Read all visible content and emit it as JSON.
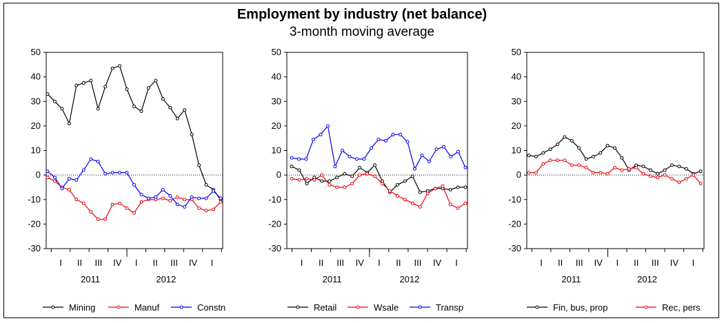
{
  "title": "Employment by industry (net balance)",
  "subtitle": "3-month moving average",
  "chart_data": [
    {
      "type": "line",
      "title": "Employment by industry (net balance)",
      "subtitle": "3-month moving average",
      "ylim": [
        -30,
        50
      ],
      "yticks": [
        -30,
        -20,
        -10,
        0,
        10,
        20,
        30,
        40,
        50
      ],
      "quarter_labels": [
        "I",
        "II",
        "III",
        "IV",
        "I",
        "II",
        "III",
        "IV",
        "I"
      ],
      "year_labels": [
        "2011",
        "2012"
      ],
      "legend_position": "bottom",
      "series": [
        {
          "name": "Mining",
          "color": "#000000",
          "values": [
            33,
            30,
            27,
            21,
            36.5,
            37.5,
            38.5,
            27,
            36,
            43.5,
            44.5,
            35,
            28,
            26,
            35.5,
            38.5,
            31,
            27.5,
            23,
            26.5,
            16.5,
            4,
            -4,
            -6,
            -10
          ]
        },
        {
          "name": "Manuf",
          "color": "#e8000b",
          "values": [
            -1,
            -2.5,
            -5,
            -6,
            -10,
            -11.5,
            -15,
            -18,
            -18,
            -12,
            -11.5,
            -13.5,
            -15.5,
            -11,
            -10,
            -10,
            -9.5,
            -10.5,
            -9,
            -10,
            -10,
            -13.5,
            -14.5,
            -14,
            -11
          ]
        },
        {
          "name": "Constn",
          "color": "#0000ee",
          "values": [
            1.5,
            -1,
            -5.5,
            -1.5,
            -2,
            2,
            6.5,
            5.5,
            0.5,
            1,
            1,
            1,
            -4,
            -8,
            -9.5,
            -9,
            -6,
            -8.5,
            -12,
            -13,
            -9,
            -9.5,
            -9.5,
            -6.5,
            -9.5
          ]
        }
      ]
    },
    {
      "type": "line",
      "ylim": [
        -30,
        50
      ],
      "yticks": [
        -30,
        -20,
        -10,
        0,
        10,
        20,
        30,
        40,
        50
      ],
      "quarter_labels": [
        "I",
        "II",
        "III",
        "IV",
        "I",
        "II",
        "III",
        "IV",
        "I"
      ],
      "year_labels": [
        "2011",
        "2012"
      ],
      "legend_position": "bottom",
      "series": [
        {
          "name": "Retail",
          "color": "#000000",
          "values": [
            3.5,
            2,
            -3.5,
            -1,
            -2.5,
            -2.5,
            -1,
            0.5,
            -0.5,
            3,
            1,
            4,
            -2.5,
            -7,
            -4,
            -2.5,
            -0.5,
            -7,
            -6.5,
            -5.5,
            -5.5,
            -6,
            -5,
            -5
          ]
        },
        {
          "name": "Wsale",
          "color": "#e8000b",
          "values": [
            -1.5,
            -2,
            -1.5,
            -2,
            0,
            -4,
            -5,
            -5,
            -3.5,
            0,
            0.5,
            -0.5,
            -3.5,
            -6.5,
            -8.5,
            -10,
            -11.5,
            -13,
            -7.5,
            -5.5,
            -4.5,
            -12,
            -13.5,
            -11.5
          ]
        },
        {
          "name": "Transp",
          "color": "#0000ee",
          "values": [
            7,
            6.5,
            6.5,
            14.5,
            16.5,
            20,
            3.5,
            10,
            7.5,
            6.5,
            6.5,
            11,
            14.5,
            14,
            16.5,
            16.5,
            13.5,
            2.5,
            8,
            5.5,
            10.5,
            11.5,
            7.5,
            9.5,
            3
          ]
        }
      ]
    },
    {
      "type": "line",
      "ylim": [
        -30,
        50
      ],
      "yticks": [
        -30,
        -20,
        -10,
        0,
        10,
        20,
        30,
        40,
        50
      ],
      "quarter_labels": [
        "I",
        "II",
        "III",
        "IV",
        "I",
        "II",
        "III",
        "IV",
        "I"
      ],
      "year_labels": [
        "2011",
        "2012"
      ],
      "legend_position": "bottom",
      "series": [
        {
          "name": "Fin, bus, prop",
          "color": "#000000",
          "values": [
            8,
            7.5,
            9,
            10.5,
            12.5,
            15.5,
            14,
            11,
            6.5,
            7.5,
            9,
            12,
            11,
            7,
            2,
            4,
            3.5,
            2,
            0.5,
            2,
            4,
            3.5,
            2.5,
            0.5,
            1.5
          ]
        },
        {
          "name": "Rec, pers",
          "color": "#e8000b",
          "values": [
            1,
            1,
            4.5,
            6,
            6,
            6,
            4,
            4,
            3,
            1,
            1,
            0.5,
            3,
            2,
            2.5,
            3,
            0.5,
            -0.5,
            -1,
            0,
            -1.5,
            -3,
            -1.5,
            0,
            -3.5
          ]
        }
      ]
    }
  ]
}
